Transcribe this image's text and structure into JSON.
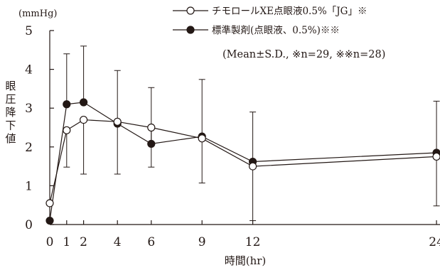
{
  "chart_data": {
    "type": "line",
    "unit": "(mmHg)",
    "ylabel": "眼圧降下値",
    "xlabel": "時間(hr)",
    "ylim": [
      0,
      5
    ],
    "yticks": [
      0,
      1,
      2,
      3,
      4,
      5
    ],
    "xticks": [
      0,
      1,
      2,
      4,
      6,
      9,
      12,
      24
    ],
    "x_scale": "broken: 0–12 hr linear, compressed 12–24 hr",
    "grid": false,
    "legend_position": "top-right",
    "note": "(Mean±S.D., ※n=29, ※※n=28)",
    "series": [
      {
        "name": "チモロールXE点眼液0.5%「JG」※",
        "marker": "open-circle",
        "x": [
          0,
          1,
          2,
          4,
          6,
          9,
          12,
          24
        ],
        "y": [
          0.55,
          2.43,
          2.7,
          2.65,
          2.5,
          2.22,
          1.5,
          1.75
        ],
        "sd": [
          0,
          0.95,
          1.4,
          1.35,
          1.02,
          1.15,
          1.4,
          1.27
        ],
        "error_dir": "down"
      },
      {
        "name": "標準製剤(点眼液、0.5%)※※",
        "marker": "filled-circle",
        "x": [
          0,
          1,
          2,
          4,
          6,
          9,
          12,
          24
        ],
        "y": [
          0.1,
          3.1,
          3.15,
          2.6,
          2.08,
          2.27,
          1.62,
          1.85
        ],
        "sd": [
          0,
          1.3,
          1.45,
          1.37,
          1.45,
          1.47,
          1.28,
          1.33
        ],
        "error_dir": "up"
      }
    ]
  }
}
